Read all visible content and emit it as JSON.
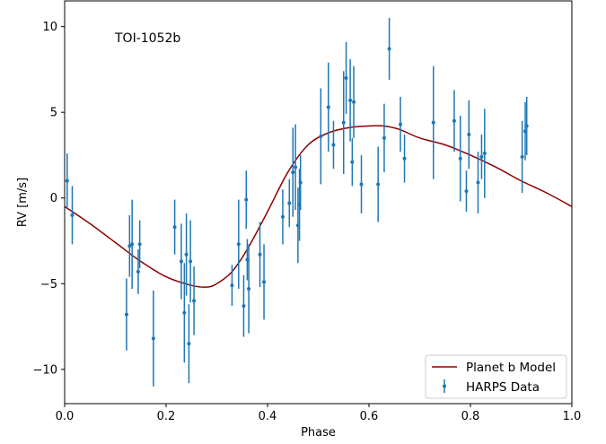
{
  "chart_data": {
    "type": "scatter",
    "title": "",
    "annotation": "TOI-1052b",
    "xlabel": "Phase",
    "ylabel": "RV [m/s]",
    "xlim": [
      0.0,
      1.0
    ],
    "ylim": [
      -12.0,
      11.5
    ],
    "xticks": [
      0.0,
      0.2,
      0.4,
      0.6,
      0.8,
      1.0
    ],
    "xtick_labels": [
      "0.0",
      "0.2",
      "0.4",
      "0.6",
      "0.8",
      "1.0"
    ],
    "yticks": [
      -10,
      -5,
      0,
      5,
      10
    ],
    "ytick_labels": [
      "−10",
      "−5",
      "0",
      "5",
      "10"
    ],
    "grid": false,
    "legend_position": "lower-right",
    "colors": {
      "data": "#1f77b4",
      "model": "#8b0000"
    },
    "series": [
      {
        "name": "Planet b Model",
        "kind": "line",
        "x": [
          0.0,
          0.05,
          0.1,
          0.15,
          0.2,
          0.25,
          0.28,
          0.3,
          0.33,
          0.36,
          0.4,
          0.44,
          0.48,
          0.52,
          0.56,
          0.6,
          0.63,
          0.66,
          0.7,
          0.75,
          0.8,
          0.85,
          0.9,
          0.95,
          1.0
        ],
        "y": [
          -0.5,
          -1.5,
          -2.6,
          -3.7,
          -4.6,
          -5.1,
          -5.2,
          -5.0,
          -4.3,
          -3.0,
          -0.8,
          1.5,
          3.1,
          3.8,
          4.1,
          4.2,
          4.2,
          4.0,
          3.5,
          3.1,
          2.5,
          1.8,
          1.0,
          0.3,
          -0.5
        ]
      },
      {
        "name": "HARPS Data",
        "kind": "errorbar",
        "points": [
          {
            "x": 0.005,
            "y": 1.0,
            "err": 1.6
          },
          {
            "x": 0.015,
            "y": -1.0,
            "err": 1.7
          },
          {
            "x": 0.122,
            "y": -6.8,
            "err": 2.1
          },
          {
            "x": 0.128,
            "y": -2.8,
            "err": 1.8
          },
          {
            "x": 0.133,
            "y": -2.7,
            "err": 2.6
          },
          {
            "x": 0.145,
            "y": -4.3,
            "err": 1.3
          },
          {
            "x": 0.148,
            "y": -2.7,
            "err": 1.4
          },
          {
            "x": 0.175,
            "y": -8.2,
            "err": 2.8
          },
          {
            "x": 0.217,
            "y": -1.7,
            "err": 1.6
          },
          {
            "x": 0.23,
            "y": -3.7,
            "err": 2.2
          },
          {
            "x": 0.236,
            "y": -6.7,
            "err": 2.9
          },
          {
            "x": 0.24,
            "y": -3.3,
            "err": 2.4
          },
          {
            "x": 0.245,
            "y": -8.5,
            "err": 2.3
          },
          {
            "x": 0.248,
            "y": -3.7,
            "err": 2.4
          },
          {
            "x": 0.255,
            "y": -6.0,
            "err": 2.0
          },
          {
            "x": 0.33,
            "y": -5.1,
            "err": 1.2
          },
          {
            "x": 0.343,
            "y": -2.7,
            "err": 2.6
          },
          {
            "x": 0.353,
            "y": -6.3,
            "err": 1.8
          },
          {
            "x": 0.358,
            "y": -0.1,
            "err": 1.7
          },
          {
            "x": 0.363,
            "y": -5.3,
            "err": 2.6
          },
          {
            "x": 0.36,
            "y": -3.6,
            "err": 1.2
          },
          {
            "x": 0.385,
            "y": -3.3,
            "err": 1.9
          },
          {
            "x": 0.393,
            "y": -4.9,
            "err": 2.2
          },
          {
            "x": 0.43,
            "y": -1.1,
            "err": 1.6
          },
          {
            "x": 0.443,
            "y": -0.3,
            "err": 1.4
          },
          {
            "x": 0.45,
            "y": 1.5,
            "err": 2.6
          },
          {
            "x": 0.455,
            "y": 1.8,
            "err": 2.5
          },
          {
            "x": 0.46,
            "y": -1.6,
            "err": 2.2
          },
          {
            "x": 0.463,
            "y": -0.4,
            "err": 2.1
          },
          {
            "x": 0.465,
            "y": 0.9,
            "err": 1.6
          },
          {
            "x": 0.505,
            "y": 3.6,
            "err": 2.8
          },
          {
            "x": 0.52,
            "y": 5.3,
            "err": 2.6
          },
          {
            "x": 0.53,
            "y": 3.1,
            "err": 1.4
          },
          {
            "x": 0.55,
            "y": 4.4,
            "err": 3.0
          },
          {
            "x": 0.555,
            "y": 7.0,
            "err": 2.1
          },
          {
            "x": 0.563,
            "y": 5.7,
            "err": 2.4
          },
          {
            "x": 0.567,
            "y": 2.1,
            "err": 1.4
          },
          {
            "x": 0.57,
            "y": 5.6,
            "err": 2.1
          },
          {
            "x": 0.585,
            "y": 0.8,
            "err": 1.7
          },
          {
            "x": 0.618,
            "y": 0.8,
            "err": 2.2
          },
          {
            "x": 0.63,
            "y": 3.5,
            "err": 2.0
          },
          {
            "x": 0.64,
            "y": 8.7,
            "err": 1.8
          },
          {
            "x": 0.662,
            "y": 4.3,
            "err": 1.6
          },
          {
            "x": 0.67,
            "y": 2.3,
            "err": 1.4
          },
          {
            "x": 0.727,
            "y": 4.4,
            "err": 3.3
          },
          {
            "x": 0.768,
            "y": 4.5,
            "err": 1.8
          },
          {
            "x": 0.78,
            "y": 2.3,
            "err": 2.5
          },
          {
            "x": 0.792,
            "y": 0.4,
            "err": 1.2
          },
          {
            "x": 0.797,
            "y": 3.7,
            "err": 2.0
          },
          {
            "x": 0.815,
            "y": 0.9,
            "err": 1.8
          },
          {
            "x": 0.822,
            "y": 2.4,
            "err": 1.3
          },
          {
            "x": 0.828,
            "y": 2.6,
            "err": 2.6
          },
          {
            "x": 0.902,
            "y": 2.4,
            "err": 2.1
          },
          {
            "x": 0.908,
            "y": 3.9,
            "err": 1.7
          },
          {
            "x": 0.911,
            "y": 4.2,
            "err": 1.7
          }
        ]
      }
    ]
  }
}
